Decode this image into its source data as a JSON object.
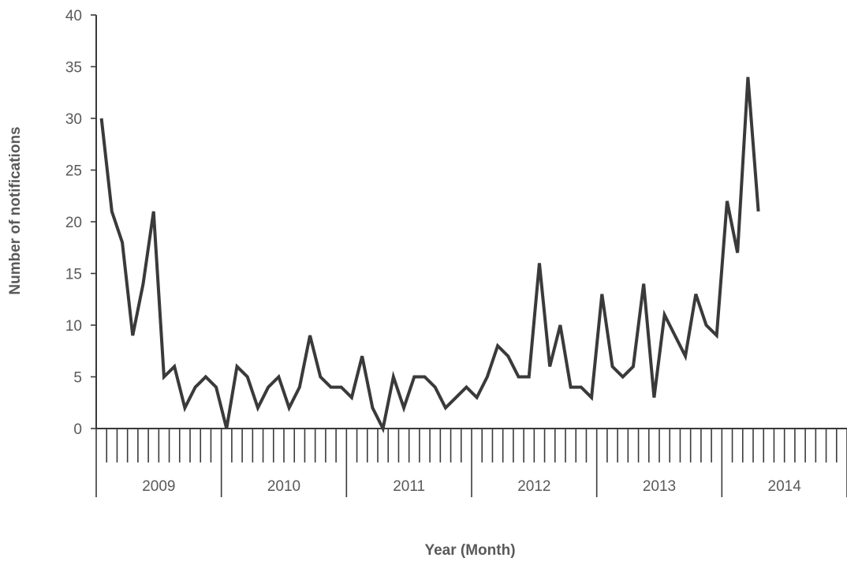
{
  "chart_data": {
    "type": "line",
    "title": "",
    "xlabel": "Year (Month)",
    "ylabel": "Number of notifications",
    "ylim": [
      0,
      40
    ],
    "yticks": [
      "0",
      "5",
      "10",
      "15",
      "20",
      "25",
      "30",
      "35",
      "40"
    ],
    "year_groups": [
      "2009",
      "2010",
      "2011",
      "2012",
      "2013",
      "2014"
    ],
    "months_per_year": 12,
    "grid": false,
    "legend": "none",
    "line_color": "#3a3a3a",
    "series": [
      {
        "values": [
          30,
          21,
          18,
          9,
          14,
          21,
          5,
          6,
          2,
          4,
          5,
          4,
          0,
          6,
          5,
          2,
          4,
          5,
          2,
          4,
          9,
          5,
          4,
          4,
          3,
          7,
          2,
          0,
          5,
          2,
          5,
          5,
          4,
          2,
          3,
          4,
          3,
          5,
          8,
          7,
          5,
          5,
          16,
          6,
          10,
          4,
          4,
          3,
          13,
          6,
          5,
          6,
          14,
          3,
          11,
          9,
          7,
          13,
          10,
          9,
          22,
          17,
          34,
          21
        ]
      }
    ]
  }
}
